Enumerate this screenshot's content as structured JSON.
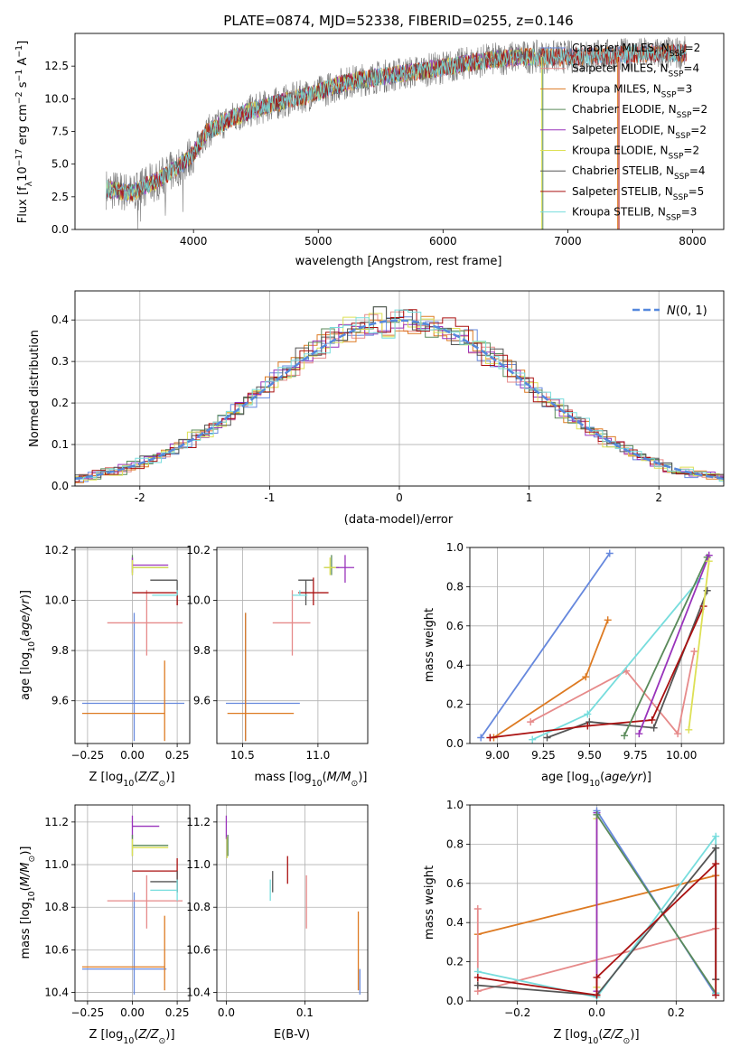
{
  "figure_title": "PLATE=0874, MJD=52338, FIBERID=0255, z=0.146",
  "model_colors": {
    "Chabrier MILES": "#6688dd",
    "Salpeter MILES": "#e68a8a",
    "Kroupa MILES": "#dd7a22",
    "Chabrier ELODIE": "#5a8a5a",
    "Salpeter ELODIE": "#9933bb",
    "Kroupa ELODIE": "#dde055",
    "Chabrier STELIB": "#555555",
    "Salpeter STELIB": "#aa1111",
    "Kroupa STELIB": "#77dddd"
  },
  "chart_data": [
    {
      "id": "spectrum",
      "type": "line",
      "xlabel": "wavelength [Angstrom, rest frame]",
      "ylabel": "Flux [f_λ 10^-17 erg cm^-2 s^-1 A^-1]",
      "xlim": [
        3050,
        8250
      ],
      "ylim": [
        0,
        15
      ],
      "xticks": [
        4000,
        5000,
        6000,
        7000,
        8000
      ],
      "yticks": [
        0.0,
        2.5,
        5.0,
        7.5,
        10.0,
        12.5
      ],
      "ytick_labels": [
        "0.0",
        "2.5",
        "5.0",
        "7.5",
        "10.0",
        "12.5"
      ],
      "grid": false,
      "legend_position": "top-right",
      "legend": [
        {
          "name": "Chabrier MILES",
          "nssp": "2",
          "color": "#6688dd"
        },
        {
          "name": "Salpeter MILES",
          "nssp": "4",
          "color": "#e68a8a"
        },
        {
          "name": "Kroupa MILES",
          "nssp": "3",
          "color": "#dd7a22"
        },
        {
          "name": "Chabrier ELODIE",
          "nssp": "2",
          "color": "#5a8a5a"
        },
        {
          "name": "Salpeter ELODIE",
          "nssp": "2",
          "color": "#9933bb"
        },
        {
          "name": "Kroupa ELODIE",
          "nssp": "2",
          "color": "#dde055"
        },
        {
          "name": "Chabrier STELIB",
          "nssp": "4",
          "color": "#555555"
        },
        {
          "name": "Salpeter STELIB",
          "nssp": "5",
          "color": "#aa1111"
        },
        {
          "name": "Kroupa STELIB",
          "nssp": "3",
          "color": "#77dddd"
        }
      ],
      "continuum": {
        "x": [
          3300,
          3500,
          3700,
          3850,
          4000,
          4100,
          4300,
          4500,
          4800,
          5000,
          5200,
          5500,
          5800,
          6000,
          6300,
          6600,
          7000,
          7300,
          7500,
          7900
        ],
        "y": [
          3.1,
          2.8,
          3.7,
          4.6,
          5.8,
          7.4,
          8.5,
          9.2,
          10.0,
          10.5,
          11.2,
          11.7,
          12.1,
          12.4,
          12.9,
          13.2,
          13.2,
          13.3,
          13.4,
          13.5
        ]
      },
      "cutoffs": [
        {
          "x": 6790,
          "color": "#dde055"
        },
        {
          "x": 6800,
          "color": "#5a8a5a"
        },
        {
          "x": 7400,
          "color": "#dd7a22"
        },
        {
          "x": 7410,
          "color": "#aa1111"
        }
      ]
    },
    {
      "id": "residuals",
      "type": "histogram",
      "xlabel": "(data-model)/error",
      "ylabel": "Normed distribution",
      "xlim": [
        -2.5,
        2.5
      ],
      "ylim": [
        0,
        0.47
      ],
      "xticks": [
        -2,
        -1,
        0,
        1,
        2
      ],
      "yticks": [
        0.0,
        0.1,
        0.2,
        0.3,
        0.4
      ],
      "ytick_labels": [
        "0.0",
        "0.1",
        "0.2",
        "0.3",
        "0.4"
      ],
      "grid": true,
      "bin_width": 0.1,
      "legend": [
        {
          "name": "N(0,1)",
          "color": "#5588dd"
        }
      ]
    },
    {
      "id": "age_vs_Z",
      "type": "errorbar",
      "xlabel": "Z [log10(Z/Z⊙)]",
      "ylabel": "age [log10(age/yr)]",
      "xlim": [
        -0.32,
        0.32
      ],
      "ylim": [
        9.43,
        10.21
      ],
      "xticks": [
        -0.25,
        0.0,
        0.25
      ],
      "xtick_labels": [
        "−0.25",
        "0.00",
        "0.25"
      ],
      "yticks": [
        9.6,
        9.8,
        10.0,
        10.2
      ],
      "ytick_labels": [
        "9.6",
        "9.8",
        "10.0",
        "10.2"
      ],
      "grid": true,
      "points": [
        {
          "model": "Chabrier MILES",
          "x": 0.01,
          "xerr": [
            0.29,
            0.28
          ],
          "y": 9.59,
          "yerr": [
            0.15,
            0.36
          ]
        },
        {
          "model": "Kroupa MILES",
          "x": 0.18,
          "xerr": [
            0.46,
            0.0
          ],
          "y": 9.55,
          "yerr": [
            0.11,
            0.21
          ]
        },
        {
          "model": "Salpeter MILES",
          "x": 0.08,
          "xerr": [
            0.22,
            0.2
          ],
          "y": 9.91,
          "yerr": [
            0.13,
            0.13
          ]
        },
        {
          "model": "Chabrier ELODIE",
          "x": 0.0,
          "xerr": [
            0.0,
            0.2
          ],
          "y": 10.13,
          "yerr": [
            0.03,
            0.05
          ]
        },
        {
          "model": "Salpeter ELODIE",
          "x": 0.0,
          "xerr": [
            0.0,
            0.2
          ],
          "y": 10.14,
          "yerr": [
            0.03,
            0.03
          ]
        },
        {
          "model": "Kroupa ELODIE",
          "x": 0.0,
          "xerr": [
            0.0,
            0.2
          ],
          "y": 10.13,
          "yerr": [
            0.03,
            0.03
          ]
        },
        {
          "model": "Chabrier STELIB",
          "x": 0.25,
          "xerr": [
            0.15,
            0.0
          ],
          "y": 10.08,
          "yerr": [
            0.1,
            0.0
          ]
        },
        {
          "model": "Salpeter STELIB",
          "x": 0.25,
          "xerr": [
            0.25,
            0.0
          ],
          "y": 10.03,
          "yerr": [
            0.05,
            0.0
          ]
        },
        {
          "model": "Kroupa STELIB",
          "x": 0.25,
          "xerr": [
            0.14,
            0.0
          ],
          "y": 10.02,
          "yerr": [
            0.0,
            0.02
          ]
        }
      ]
    },
    {
      "id": "age_vs_mass",
      "type": "errorbar",
      "xlabel": "mass [log10(M/M⊙)]",
      "ylabel": "",
      "xlim": [
        10.33,
        11.33
      ],
      "ylim": [
        9.43,
        10.21
      ],
      "xticks": [
        10.5,
        11.0
      ],
      "xtick_labels": [
        "10.5",
        "11.0"
      ],
      "yticks": [
        9.6,
        9.8,
        10.0,
        10.2
      ],
      "ytick_labels": [
        "9.6",
        "9.8",
        "10.0",
        "10.2"
      ],
      "grid": true,
      "points": [
        {
          "model": "Chabrier MILES",
          "x": 10.52,
          "xerr": [
            0.13,
            0.36
          ],
          "y": 9.59,
          "yerr": [
            0.15,
            0.36
          ]
        },
        {
          "model": "Kroupa MILES",
          "x": 10.52,
          "xerr": [
            0.12,
            0.32
          ],
          "y": 9.55,
          "yerr": [
            0.11,
            0.4
          ]
        },
        {
          "model": "Salpeter MILES",
          "x": 10.83,
          "xerr": [
            0.13,
            0.12
          ],
          "y": 9.91,
          "yerr": [
            0.13,
            0.13
          ]
        },
        {
          "model": "Chabrier ELODIE",
          "x": 11.09,
          "xerr": [
            0.05,
            0.05
          ],
          "y": 10.13,
          "yerr": [
            0.03,
            0.05
          ]
        },
        {
          "model": "Salpeter ELODIE",
          "x": 11.18,
          "xerr": [
            0.06,
            0.06
          ],
          "y": 10.13,
          "yerr": [
            0.06,
            0.05
          ]
        },
        {
          "model": "Kroupa ELODIE",
          "x": 11.08,
          "xerr": [
            0.04,
            0.04
          ],
          "y": 10.13,
          "yerr": [
            0.03,
            0.04
          ]
        },
        {
          "model": "Chabrier STELIB",
          "x": 10.92,
          "xerr": [
            0.05,
            0.05
          ],
          "y": 10.08,
          "yerr": [
            0.1,
            0.0
          ]
        },
        {
          "model": "Salpeter STELIB",
          "x": 10.97,
          "xerr": [
            0.1,
            0.1
          ],
          "y": 10.03,
          "yerr": [
            0.05,
            0.06
          ]
        },
        {
          "model": "Kroupa STELIB",
          "x": 10.88,
          "xerr": [
            0.05,
            0.05
          ],
          "y": 10.02,
          "yerr": [
            0.0,
            0.02
          ]
        }
      ]
    },
    {
      "id": "massweight_vs_age",
      "type": "line",
      "xlabel": "age [log10(age/yr)]",
      "ylabel": "mass weight",
      "xlim": [
        8.85,
        10.23
      ],
      "ylim": [
        0,
        1
      ],
      "xticks": [
        9.0,
        9.25,
        9.5,
        9.75,
        10.0
      ],
      "xtick_labels": [
        "9.00",
        "9.25",
        "9.50",
        "9.75",
        "10.00"
      ],
      "yticks": [
        0.0,
        0.2,
        0.4,
        0.6,
        0.8,
        1.0
      ],
      "ytick_labels": [
        "0.0",
        "0.2",
        "0.4",
        "0.6",
        "0.8",
        "1.0"
      ],
      "grid": true,
      "series": [
        {
          "model": "Chabrier MILES",
          "x": [
            8.91,
            9.61
          ],
          "y": [
            0.03,
            0.97
          ]
        },
        {
          "model": "Kroupa MILES",
          "x": [
            8.98,
            9.48,
            9.6
          ],
          "y": [
            0.03,
            0.34,
            0.63
          ]
        },
        {
          "model": "Salpeter MILES",
          "x": [
            9.18,
            9.7,
            9.98,
            10.07
          ],
          "y": [
            0.11,
            0.37,
            0.05,
            0.47
          ]
        },
        {
          "model": "Kroupa STELIB",
          "x": [
            9.19,
            9.49,
            10.1
          ],
          "y": [
            0.02,
            0.15,
            0.84
          ]
        },
        {
          "model": "Chabrier STELIB",
          "x": [
            9.27,
            9.5,
            9.85,
            10.14
          ],
          "y": [
            0.03,
            0.11,
            0.08,
            0.78
          ]
        },
        {
          "model": "Salpeter STELIB",
          "x": [
            8.96,
            9.49,
            9.84,
            10.12
          ],
          "y": [
            0.03,
            0.09,
            0.12,
            0.7
          ]
        },
        {
          "model": "Chabrier ELODIE",
          "x": [
            9.69,
            10.14
          ],
          "y": [
            0.04,
            0.95
          ]
        },
        {
          "model": "Salpeter ELODIE",
          "x": [
            9.77,
            10.15
          ],
          "y": [
            0.05,
            0.96
          ]
        },
        {
          "model": "Kroupa ELODIE",
          "x": [
            10.04,
            10.15
          ],
          "y": [
            0.07,
            0.93
          ]
        }
      ]
    },
    {
      "id": "mass_vs_Z",
      "type": "errorbar",
      "xlabel": "Z [log10(Z/Z⊙)]",
      "ylabel": "mass [log10(M/M⊙)]",
      "xlim": [
        -0.32,
        0.32
      ],
      "ylim": [
        10.36,
        11.28
      ],
      "xticks": [
        -0.25,
        0.0,
        0.25
      ],
      "xtick_labels": [
        "−0.25",
        "0.00",
        "0.25"
      ],
      "yticks": [
        10.4,
        10.6,
        10.8,
        11.0,
        11.2
      ],
      "ytick_labels": [
        "10.4",
        "10.6",
        "10.8",
        "11.0",
        "11.2"
      ],
      "grid": true,
      "points": [
        {
          "model": "Chabrier MILES",
          "x": 0.01,
          "xerr": [
            0.29,
            0.18
          ],
          "y": 10.51,
          "yerr": [
            0.12,
            0.36
          ]
        },
        {
          "model": "Kroupa MILES",
          "x": 0.18,
          "xerr": [
            0.46,
            0.0
          ],
          "y": 10.52,
          "yerr": [
            0.11,
            0.24
          ]
        },
        {
          "model": "Salpeter MILES",
          "x": 0.08,
          "xerr": [
            0.22,
            0.2
          ],
          "y": 10.83,
          "yerr": [
            0.13,
            0.12
          ]
        },
        {
          "model": "Salpeter ELODIE",
          "x": 0.0,
          "xerr": [
            0.0,
            0.15
          ],
          "y": 11.18,
          "yerr": [
            0.06,
            0.05
          ]
        },
        {
          "model": "Chabrier ELODIE",
          "x": 0.0,
          "xerr": [
            0.0,
            0.2
          ],
          "y": 11.09,
          "yerr": [
            0.05,
            0.05
          ]
        },
        {
          "model": "Kroupa ELODIE",
          "x": 0.0,
          "xerr": [
            0.0,
            0.2
          ],
          "y": 11.08,
          "yerr": [
            0.04,
            0.04
          ]
        },
        {
          "model": "Salpeter STELIB",
          "x": 0.25,
          "xerr": [
            0.25,
            0.0
          ],
          "y": 10.97,
          "yerr": [
            0.1,
            0.06
          ]
        },
        {
          "model": "Chabrier STELIB",
          "x": 0.25,
          "xerr": [
            0.15,
            0.0
          ],
          "y": 10.92,
          "yerr": [
            0.05,
            0.05
          ]
        },
        {
          "model": "Kroupa STELIB",
          "x": 0.25,
          "xerr": [
            0.15,
            0.0
          ],
          "y": 10.88,
          "yerr": [
            0.05,
            0.05
          ]
        }
      ]
    },
    {
      "id": "mass_vs_ebv",
      "type": "errorbar",
      "xlabel": "E(B-V)",
      "ylabel": "",
      "xlim": [
        -0.012,
        0.18
      ],
      "ylim": [
        10.36,
        11.28
      ],
      "xticks": [
        0.0,
        0.1
      ],
      "xtick_labels": [
        "0.0",
        "0.1"
      ],
      "yticks": [
        10.4,
        10.6,
        10.8,
        11.0,
        11.2
      ],
      "ytick_labels": [
        "10.4",
        "10.6",
        "10.8",
        "11.0",
        "11.2"
      ],
      "grid": true,
      "points": [
        {
          "model": "Salpeter ELODIE",
          "x": 0.0,
          "y": 11.18,
          "yerr": [
            0.06,
            0.05
          ]
        },
        {
          "model": "Kroupa ELODIE",
          "x": 0.001,
          "y": 11.08,
          "yerr": [
            0.05,
            0.05
          ]
        },
        {
          "model": "Chabrier ELODIE",
          "x": 0.002,
          "y": 11.09,
          "yerr": [
            0.05,
            0.05
          ]
        },
        {
          "model": "Kroupa STELIB",
          "x": 0.056,
          "y": 10.88,
          "yerr": [
            0.05,
            0.05
          ]
        },
        {
          "model": "Chabrier STELIB",
          "x": 0.059,
          "y": 10.92,
          "yerr": [
            0.05,
            0.05
          ]
        },
        {
          "model": "Salpeter STELIB",
          "x": 0.078,
          "y": 10.97,
          "yerr": [
            0.06,
            0.07
          ]
        },
        {
          "model": "Salpeter MILES",
          "x": 0.102,
          "y": 10.83,
          "yerr": [
            0.13,
            0.12
          ]
        },
        {
          "model": "Kroupa MILES",
          "x": 0.168,
          "y": 10.52,
          "yerr": [
            0.11,
            0.26
          ]
        },
        {
          "model": "Chabrier MILES",
          "x": 0.17,
          "y": 10.51,
          "yerr": [
            0.12,
            0.0
          ]
        }
      ]
    },
    {
      "id": "massweight_vs_Z",
      "type": "line",
      "xlabel": "Z [log10(Z/Z⊙)]",
      "ylabel": "mass weight",
      "xlim": [
        -0.32,
        0.32
      ],
      "ylim": [
        0,
        1
      ],
      "xticks": [
        -0.2,
        0.0,
        0.2
      ],
      "xtick_labels": [
        "−0.2",
        "0.0",
        "0.2"
      ],
      "yticks": [
        0.0,
        0.2,
        0.4,
        0.6,
        0.8,
        1.0
      ],
      "ytick_labels": [
        "0.0",
        "0.2",
        "0.4",
        "0.6",
        "0.8",
        "1.0"
      ],
      "grid": true,
      "series": [
        {
          "model": "Kroupa MILES",
          "x": [
            -0.3,
            0.3
          ],
          "y": [
            0.34,
            0.64
          ]
        },
        {
          "model": "Salpeter MILES",
          "x": [
            -0.3,
            -0.3,
            0.3
          ],
          "y": [
            0.47,
            0.05,
            0.37
          ]
        },
        {
          "model": "Kroupa ELODIE",
          "x": [
            0.0,
            0.0
          ],
          "y": [
            0.07,
            0.93
          ]
        },
        {
          "model": "Salpeter ELODIE",
          "x": [
            0.0,
            0.0
          ],
          "y": [
            0.05,
            0.96
          ]
        },
        {
          "model": "Chabrier MILES",
          "x": [
            0.0,
            0.3
          ],
          "y": [
            0.97,
            0.03
          ]
        },
        {
          "model": "Chabrier ELODIE",
          "x": [
            0.0,
            0.3
          ],
          "y": [
            0.95,
            0.04
          ]
        },
        {
          "model": "Kroupa STELIB",
          "x": [
            -0.3,
            0.0,
            0.3,
            0.3
          ],
          "y": [
            0.15,
            0.02,
            0.84,
            0.04
          ]
        },
        {
          "model": "Chabrier STELIB",
          "x": [
            -0.3,
            0.0,
            0.3,
            0.3
          ],
          "y": [
            0.08,
            0.03,
            0.78,
            0.11
          ]
        },
        {
          "model": "Salpeter STELIB",
          "x": [
            -0.3,
            0.0,
            0.0,
            0.3,
            0.3
          ],
          "y": [
            0.12,
            0.03,
            0.12,
            0.7,
            0.03
          ]
        }
      ]
    }
  ]
}
